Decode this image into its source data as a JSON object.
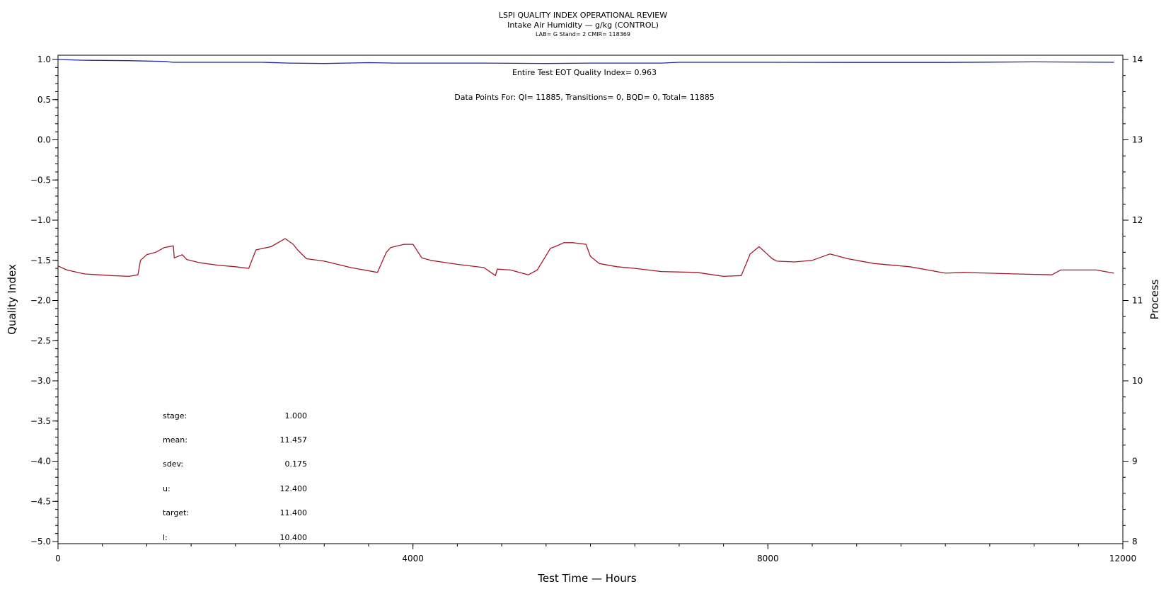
{
  "chart_data": {
    "type": "line",
    "title": "LSPI QUALITY INDEX OPERATIONAL REVIEW",
    "subtitle": "Intake Air Humidity — g/kg (CONTROL)",
    "subtitle2": "LAB= G Stand= 2 CMIR= 118369",
    "xlabel": "Test Time — Hours",
    "ylabel": "Quality Index",
    "y2label": "Process",
    "xlim": [
      0,
      12000
    ],
    "ylim": [
      -5.0,
      1.0
    ],
    "y2lim": [
      8,
      14
    ],
    "x_ticks": [
      "0",
      "4000",
      "8000",
      "12000"
    ],
    "y_ticks": [
      "1.0",
      "0.5",
      "0.0",
      "−0.5",
      "−1.0",
      "−1.5",
      "−2.0",
      "−2.5",
      "−3.0",
      "−3.5",
      "−4.0",
      "−4.5",
      "−5.0"
    ],
    "y2_ticks": [
      "14",
      "13",
      "12",
      "11",
      "10",
      "9",
      "8"
    ],
    "annotations": [
      "Entire Test EOT Quality Index=   0.963",
      "Data Points For: QI= 11885, Transitions=     0, BQD=     0, Total= 11885"
    ],
    "stats": [
      {
        "label": "stage:",
        "value": "1.000"
      },
      {
        "label": "mean:",
        "value": "11.457"
      },
      {
        "label": "sdev:",
        "value": "0.175"
      },
      {
        "label": "u:",
        "value": "12.400"
      },
      {
        "label": "target:",
        "value": "11.400"
      },
      {
        "label": "l:",
        "value": "10.400"
      }
    ],
    "series": [
      {
        "axis": "left",
        "color": "#1f2a9c",
        "x": [
          0,
          150,
          300,
          800,
          1200,
          1300,
          1800,
          2300,
          2600,
          3000,
          3500,
          3800,
          4000,
          4800,
          5500,
          6000,
          6800,
          7000,
          7500,
          8000,
          9000,
          10000,
          11000,
          11900
        ],
        "y": [
          1.0,
          0.995,
          0.99,
          0.985,
          0.975,
          0.965,
          0.965,
          0.965,
          0.955,
          0.95,
          0.96,
          0.955,
          0.955,
          0.955,
          0.95,
          0.955,
          0.955,
          0.965,
          0.965,
          0.965,
          0.963,
          0.963,
          0.97,
          0.965
        ]
      },
      {
        "axis": "right",
        "color": "#a31a2a",
        "x": [
          0,
          100,
          300,
          600,
          800,
          900,
          930,
          1000,
          1100,
          1200,
          1300,
          1310,
          1400,
          1450,
          1600,
          1800,
          2000,
          2150,
          2230,
          2400,
          2560,
          2650,
          2700,
          2800,
          3000,
          3300,
          3600,
          3700,
          3750,
          3900,
          4000,
          4100,
          4200,
          4500,
          4800,
          4930,
          4950,
          5100,
          5300,
          5400,
          5550,
          5600,
          5700,
          5800,
          5950,
          6000,
          6100,
          6300,
          6500,
          6800,
          7200,
          7500,
          7700,
          7800,
          7900,
          8000,
          8050,
          8100,
          8300,
          8500,
          8700,
          8900,
          9200,
          9600,
          10000,
          10200,
          10500,
          10800,
          11200,
          11300,
          11500,
          11700,
          11900
        ],
        "y": [
          11.43,
          11.38,
          11.33,
          11.31,
          11.3,
          11.32,
          11.5,
          11.57,
          11.6,
          11.66,
          11.68,
          11.53,
          11.57,
          11.51,
          11.47,
          11.44,
          11.42,
          11.4,
          11.63,
          11.67,
          11.77,
          11.7,
          11.63,
          11.52,
          11.49,
          11.41,
          11.35,
          11.6,
          11.66,
          11.7,
          11.7,
          11.53,
          11.5,
          11.45,
          11.41,
          11.31,
          11.39,
          11.38,
          11.32,
          11.38,
          11.65,
          11.67,
          11.72,
          11.72,
          11.7,
          11.55,
          11.46,
          11.42,
          11.4,
          11.36,
          11.35,
          11.3,
          11.31,
          11.58,
          11.67,
          11.57,
          11.52,
          11.49,
          11.48,
          11.5,
          11.58,
          11.52,
          11.46,
          11.42,
          11.34,
          11.35,
          11.34,
          11.33,
          11.32,
          11.38,
          11.38,
          11.38,
          11.34
        ]
      }
    ]
  }
}
